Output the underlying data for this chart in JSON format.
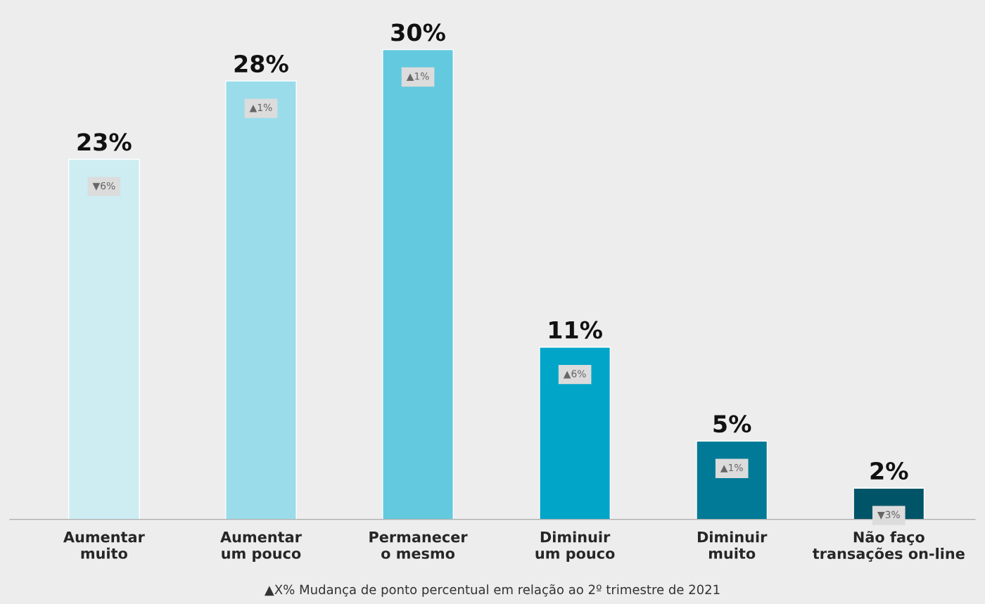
{
  "chart_data": {
    "type": "bar",
    "categories": [
      "Aumentar\nmuito",
      "Aumentar\num pouco",
      "Permanecer\no mesmo",
      "Diminuir\num pouco",
      "Diminuir\nmuito",
      "Não faço\ntransações on-line"
    ],
    "values": [
      23,
      28,
      30,
      11,
      5,
      2
    ],
    "colors": [
      "#cdedf3",
      "#9adcea",
      "#63c9de",
      "#00a5c8",
      "#007a96",
      "#005468"
    ],
    "value_labels": [
      "23%",
      "28%",
      "30%",
      "11%",
      "5%",
      "2%"
    ],
    "annotations": [
      {
        "text": "▼6%",
        "x": "Aumentar\nmuito",
        "y": 23
      },
      {
        "text": "▲1%",
        "x": "Aumentar\num pouco",
        "y": 28
      },
      {
        "text": "▲1%",
        "x": "Permanecer\no mesmo",
        "y": 30
      },
      {
        "text": "▲6%",
        "x": "Diminuir\num pouco",
        "y": 11
      },
      {
        "text": "▲1%",
        "x": "Diminuir\nmuito",
        "y": 5
      },
      {
        "text": "▼3%",
        "x": "Não faço\ntransações on-line",
        "y": 2
      },
      "▲X% Mudança de ponto percentual em relação ao 2º trimestre de 2021"
    ]
  }
}
